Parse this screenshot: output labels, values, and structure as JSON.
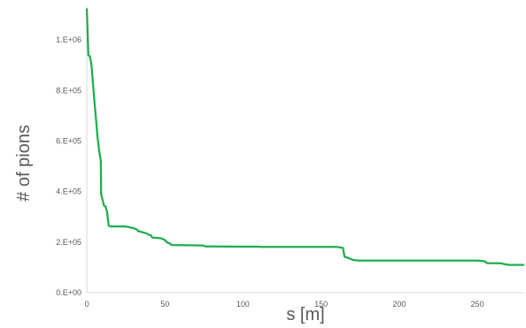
{
  "chart_data": {
    "type": "line",
    "title": "",
    "xlabel": "s [m]",
    "ylabel": "# of pions",
    "xlim": [
      0,
      280
    ],
    "ylim": [
      0,
      1130000
    ],
    "grid": false,
    "legend": "none",
    "x_ticks": [
      {
        "value": 0,
        "label": "0"
      },
      {
        "value": 50,
        "label": "50"
      },
      {
        "value": 100,
        "label": "100"
      },
      {
        "value": 150,
        "label": "150"
      },
      {
        "value": 200,
        "label": "200"
      },
      {
        "value": 250,
        "label": "250"
      }
    ],
    "y_ticks": [
      {
        "value": 0,
        "label": "0.E+00"
      },
      {
        "value": 200000,
        "label": "2.E+05"
      },
      {
        "value": 400000,
        "label": "4.E+05"
      },
      {
        "value": 600000,
        "label": "6.E+05"
      },
      {
        "value": 800000,
        "label": "8.E+05"
      },
      {
        "value": 1000000,
        "label": "1.E+06"
      }
    ],
    "series": [
      {
        "color": "#1fad4f",
        "x": [
          0,
          1,
          2,
          3,
          5,
          6,
          7,
          8,
          9,
          9.2,
          10,
          11,
          12,
          13,
          14,
          15,
          20,
          25,
          28,
          30,
          32,
          33,
          35,
          38,
          40,
          41,
          42,
          45,
          48,
          50,
          51,
          53,
          54,
          55,
          60,
          70,
          75,
          76,
          80,
          100,
          110,
          111,
          130,
          150,
          160,
          164,
          165,
          166,
          168,
          170,
          172,
          175,
          200,
          230,
          250,
          253,
          255,
          256,
          260,
          265,
          268,
          270,
          275,
          280
        ],
        "y": [
          1125000,
          940000,
          935000,
          900000,
          750000,
          680000,
          610000,
          560000,
          520000,
          390000,
          370000,
          345000,
          340000,
          320000,
          265000,
          262000,
          262000,
          262000,
          258000,
          255000,
          250000,
          243000,
          240000,
          235000,
          228000,
          227000,
          218000,
          217000,
          214000,
          208000,
          200000,
          195000,
          190000,
          188000,
          188000,
          187000,
          186000,
          183000,
          183000,
          182000,
          182000,
          181000,
          181000,
          181000,
          181000,
          177000,
          142000,
          140000,
          136000,
          130000,
          128000,
          127000,
          127000,
          127000,
          127000,
          125000,
          123000,
          117000,
          116000,
          116000,
          112000,
          110000,
          110000,
          110000
        ]
      }
    ]
  }
}
